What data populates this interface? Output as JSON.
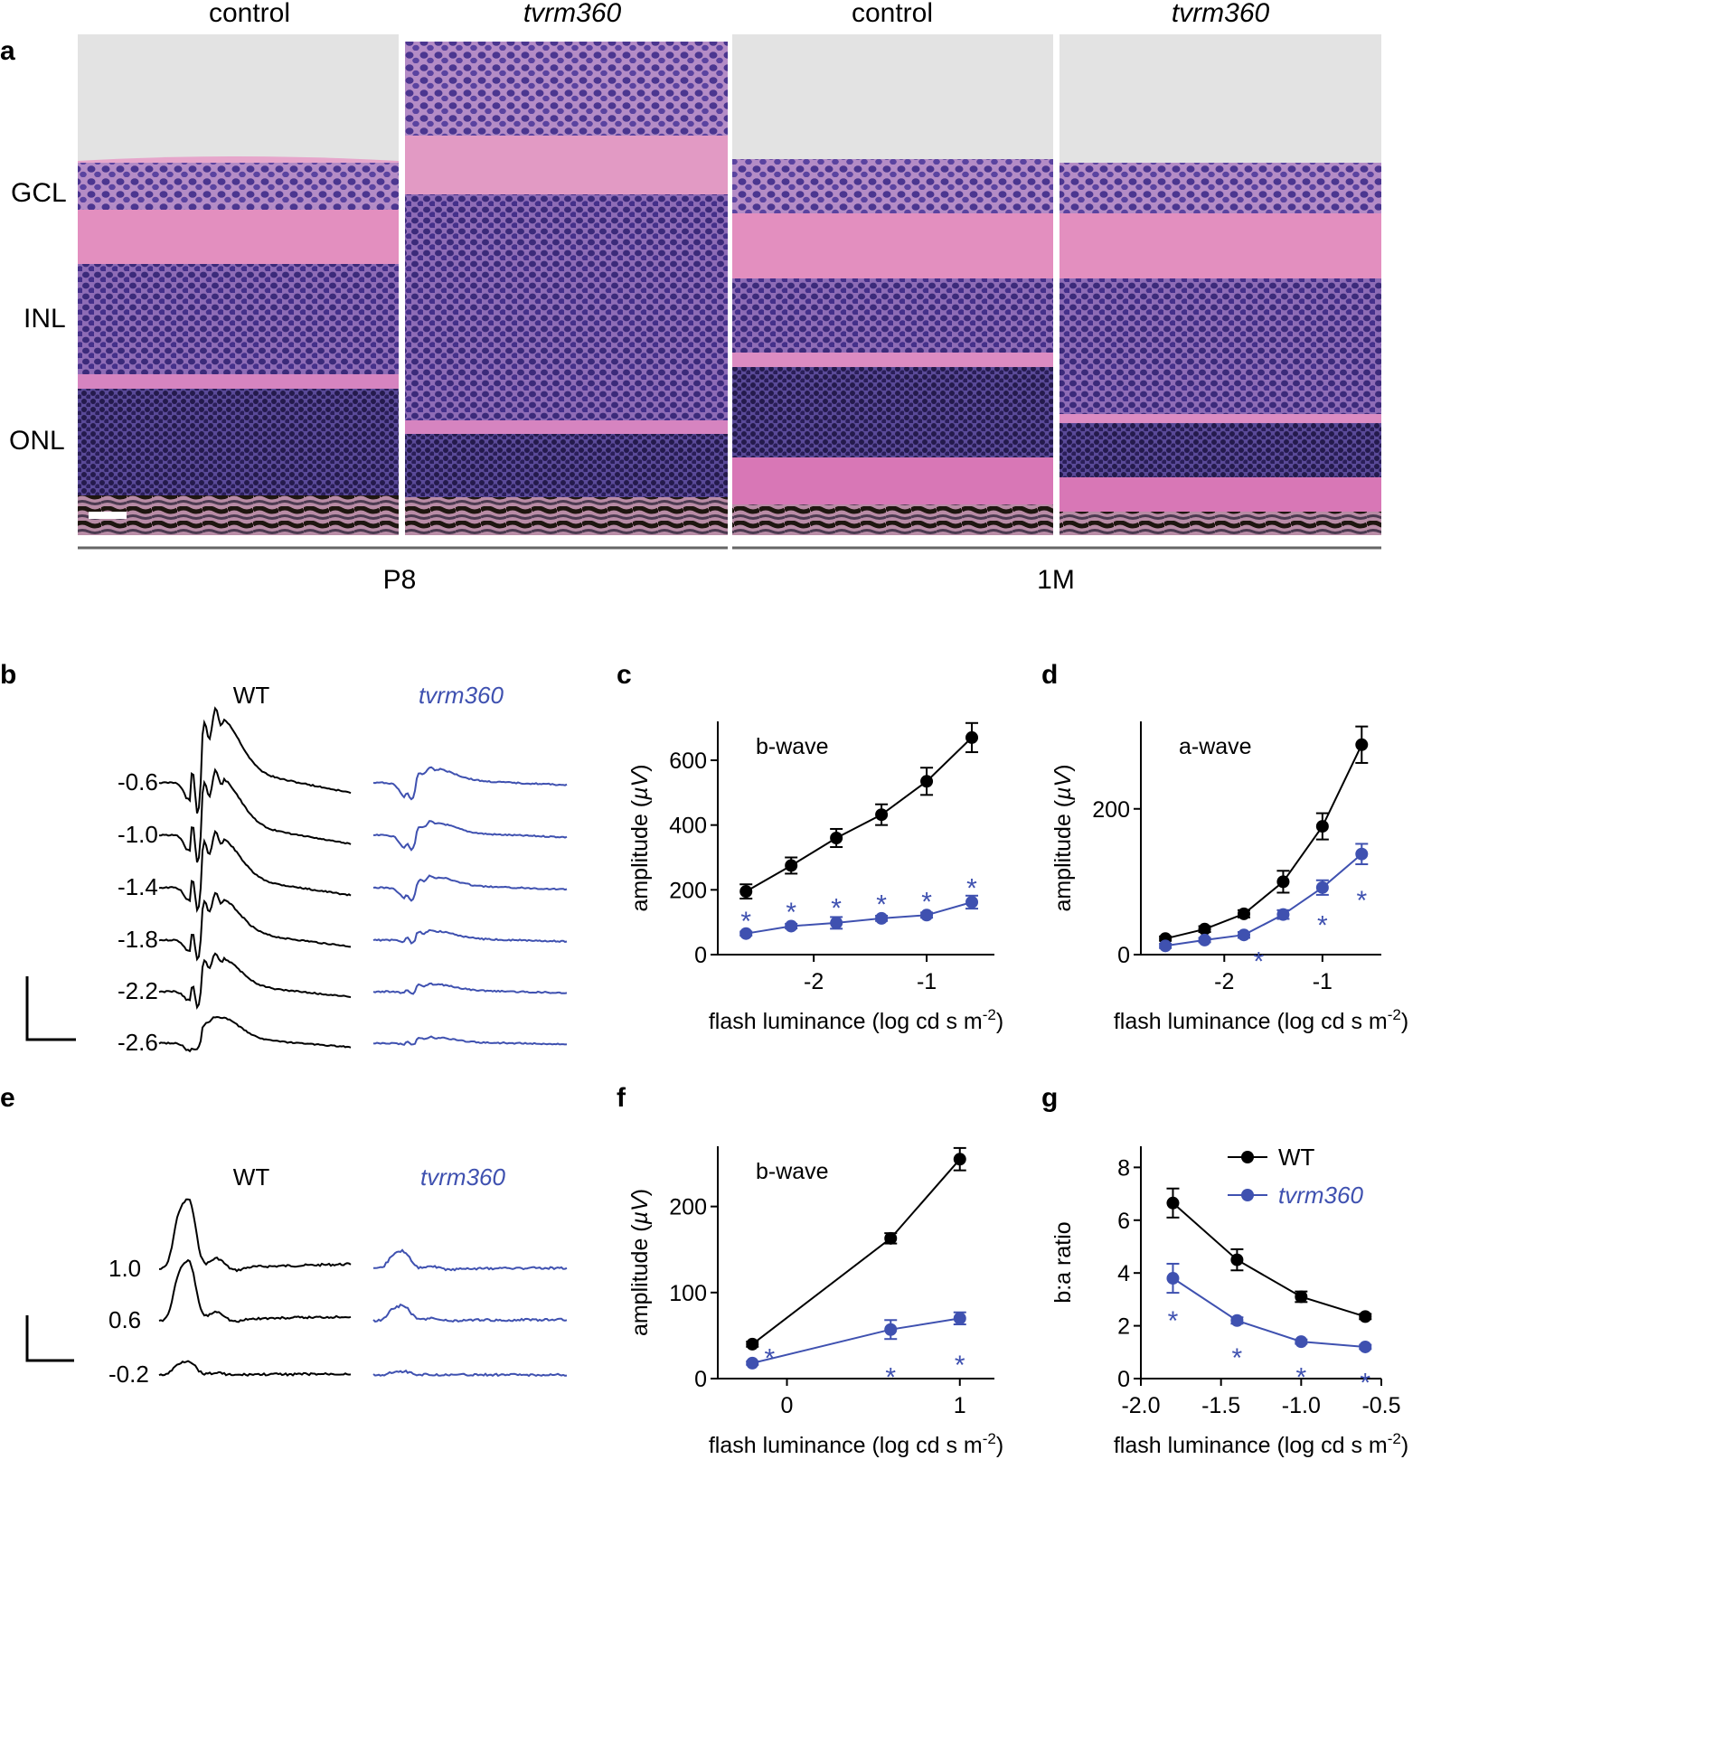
{
  "panel_a": {
    "label": "a",
    "columns": [
      "control",
      "tvrm360",
      "control",
      "tvrm360"
    ],
    "layers": [
      "GCL",
      "INL",
      "ONL"
    ],
    "ages": [
      "P8",
      "1M"
    ]
  },
  "panel_b": {
    "label": "b",
    "groups": [
      "WT",
      "tvrm360"
    ],
    "intensities": [
      "-0.6",
      "-1.0",
      "-1.4",
      "-1.8",
      "-2.2",
      "-2.6"
    ]
  },
  "panel_e": {
    "label": "e",
    "groups": [
      "WT",
      "tvrm360"
    ],
    "intensities": [
      "1.0",
      "0.6",
      "-0.2"
    ]
  },
  "colors": {
    "wt": "#000000",
    "mutant": "#3f51b0",
    "axis": "#000000",
    "bg_gray": "#e3e3e3"
  },
  "chart_data": [
    {
      "id": "c",
      "type": "line",
      "title": "b-wave",
      "xlabel": "flash luminance (log cd s m",
      "xlabel_sup": "-2",
      "xlabel_end": ")",
      "ylabel": "amplitude (",
      "ylabel_unit": "µV",
      "ylabel_end": ")",
      "xlim": [
        -2.85,
        -0.4
      ],
      "ylim": [
        0,
        720
      ],
      "xticks": [
        -2,
        -1
      ],
      "xtick_labels": [
        "-2",
        "-1"
      ],
      "yticks": [
        0,
        200,
        400,
        600
      ],
      "ytick_labels": [
        "0",
        "200",
        "400",
        "600"
      ],
      "series": [
        {
          "key": "wt",
          "x": [
            -2.6,
            -2.2,
            -1.8,
            -1.4,
            -1.0,
            -0.6
          ],
          "y": [
            195,
            275,
            360,
            432,
            535,
            670
          ],
          "err": [
            22,
            25,
            28,
            32,
            42,
            45
          ]
        },
        {
          "key": "mutant",
          "x": [
            -2.6,
            -2.2,
            -1.8,
            -1.4,
            -1.0,
            -0.6
          ],
          "y": [
            65,
            88,
            98,
            112,
            122,
            162
          ],
          "err": [
            6,
            7,
            18,
            8,
            8,
            20
          ]
        }
      ],
      "annotations": [
        {
          "x": -2.6,
          "y": 120,
          "text": "*"
        },
        {
          "x": -2.2,
          "y": 148,
          "text": "*"
        },
        {
          "x": -1.8,
          "y": 160,
          "text": "*"
        },
        {
          "x": -1.4,
          "y": 172,
          "text": "*"
        },
        {
          "x": -1.0,
          "y": 180,
          "text": "*"
        },
        {
          "x": -0.6,
          "y": 222,
          "text": "*"
        }
      ]
    },
    {
      "id": "d",
      "type": "line",
      "title": "a-wave",
      "xlabel": "flash luminance (log cd s m",
      "xlabel_sup": "-2",
      "xlabel_end": ")",
      "ylabel": "amplitude (",
      "ylabel_unit": "µV",
      "ylabel_end": ")",
      "xlim": [
        -2.85,
        -0.4
      ],
      "ylim": [
        0,
        320
      ],
      "xticks": [
        -2,
        -1
      ],
      "xtick_labels": [
        "-2",
        "-1"
      ],
      "yticks": [
        0,
        200
      ],
      "ytick_labels": [
        "0",
        "200"
      ],
      "series": [
        {
          "key": "wt",
          "x": [
            -2.6,
            -2.2,
            -1.8,
            -1.4,
            -1.0,
            -0.6
          ],
          "y": [
            22,
            35,
            56,
            100,
            176,
            288
          ],
          "err": [
            3,
            4,
            5,
            15,
            18,
            25
          ]
        },
        {
          "key": "mutant",
          "x": [
            -2.6,
            -2.2,
            -1.8,
            -1.4,
            -1.0,
            -0.6
          ],
          "y": [
            12,
            20,
            27,
            55,
            92,
            138
          ],
          "err": [
            3,
            3,
            4,
            6,
            10,
            14
          ]
        }
      ],
      "annotations": [
        {
          "x": -1.65,
          "y": -2,
          "text": "*"
        },
        {
          "x": -1.0,
          "y": 48,
          "text": "*"
        },
        {
          "x": -0.6,
          "y": 82,
          "text": "*"
        }
      ]
    },
    {
      "id": "f",
      "type": "line",
      "title": "b-wave",
      "xlabel": "flash luminance (log cd s m",
      "xlabel_sup": "-2",
      "xlabel_end": ")",
      "ylabel": "amplitude (",
      "ylabel_unit": "µV",
      "ylabel_end": ")",
      "xlim": [
        -0.4,
        1.2
      ],
      "ylim": [
        0,
        270
      ],
      "xticks": [
        0,
        1
      ],
      "xtick_labels": [
        "0",
        "1"
      ],
      "yticks": [
        0,
        100,
        200
      ],
      "ytick_labels": [
        "0",
        "100",
        "200"
      ],
      "series": [
        {
          "key": "wt",
          "x": [
            -0.2,
            0.6,
            1.0
          ],
          "y": [
            40,
            163,
            255
          ],
          "err": [
            3,
            6,
            13
          ]
        },
        {
          "key": "mutant",
          "x": [
            -0.2,
            0.6,
            1.0
          ],
          "y": [
            18,
            57,
            70
          ],
          "err": [
            2,
            11,
            7
          ]
        }
      ],
      "annotations": [
        {
          "x": -0.1,
          "y": 30,
          "text": "*"
        },
        {
          "x": 0.6,
          "y": 8,
          "text": "*"
        },
        {
          "x": 1.0,
          "y": 22,
          "text": "*"
        }
      ]
    },
    {
      "id": "g",
      "type": "line",
      "title": "",
      "xlabel": "flash luminance (log cd s m",
      "xlabel_sup": "-2",
      "xlabel_end": ")",
      "ylabel": "b:a ratio",
      "ylabel_unit": "",
      "ylabel_end": "",
      "xlim": [
        -2.0,
        -0.5
      ],
      "ylim": [
        0,
        8.8
      ],
      "xticks": [
        -2.0,
        -1.5,
        -1.0,
        -0.5
      ],
      "xtick_labels": [
        "-2.0",
        "-1.5",
        "-1.0",
        "-0.5"
      ],
      "yticks": [
        0,
        2,
        4,
        6,
        8
      ],
      "ytick_labels": [
        "0",
        "2",
        "4",
        "6",
        "8"
      ],
      "legend": [
        {
          "key": "wt",
          "name": "WT"
        },
        {
          "key": "mutant",
          "name": "tvrm360"
        }
      ],
      "legend_position": "top-right",
      "series": [
        {
          "key": "wt",
          "name": "WT",
          "x": [
            -1.8,
            -1.4,
            -1.0,
            -0.6
          ],
          "y": [
            6.65,
            4.5,
            3.1,
            2.35
          ],
          "err": [
            0.55,
            0.4,
            0.2,
            0.1
          ]
        },
        {
          "key": "mutant",
          "name": "tvrm360",
          "x": [
            -1.8,
            -1.4,
            -1.0,
            -0.6
          ],
          "y": [
            3.8,
            2.2,
            1.4,
            1.2
          ],
          "err": [
            0.55,
            0.12,
            0.08,
            0.08
          ]
        }
      ],
      "annotations": [
        {
          "x": -1.8,
          "y": 2.4,
          "text": "*"
        },
        {
          "x": -1.4,
          "y": 1.0,
          "text": "*"
        },
        {
          "x": -1.0,
          "y": 0.25,
          "text": "*"
        },
        {
          "x": -0.6,
          "y": 0.05,
          "text": "*"
        }
      ]
    }
  ]
}
